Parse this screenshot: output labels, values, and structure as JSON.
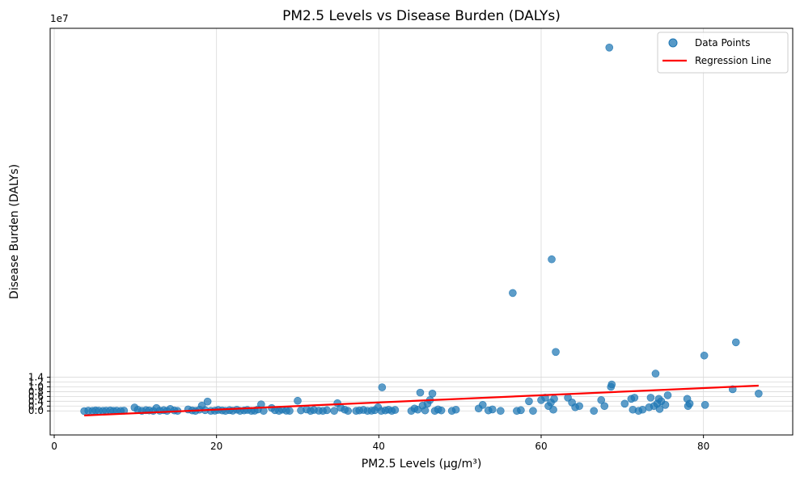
{
  "chart_data": {
    "type": "scatter",
    "title": "PM2.5 Levels vs Disease Burden (DALYs)",
    "xlabel": "PM2.5 Levels (µg/m³)",
    "ylabel": "Disease Burden (DALYs)",
    "y_offset_text": "1e7",
    "xlim": [
      -0.5,
      91
    ],
    "ylim": [
      -1.0,
      15.9
    ],
    "y_scale_multiplier": 10000000,
    "x_ticks": [
      0,
      20,
      40,
      60,
      80
    ],
    "x_tick_labels": [
      "0",
      "20",
      "40",
      "60",
      "80"
    ],
    "y_ticks": [
      0,
      0.2,
      0.4,
      0.6,
      0.8,
      1.0,
      1.2,
      1.4
    ],
    "y_tick_labels": [
      "0.0",
      "0.2",
      "0.4",
      "0.6",
      "0.8",
      "1.0",
      "1.2",
      "1.4"
    ],
    "grid": true,
    "legend_position": "top-right",
    "colors": {
      "points": "#1f77b4",
      "regression": "#ff0000",
      "grid": "#d9d9d9"
    },
    "series": [
      {
        "name": "Data Points",
        "kind": "scatter",
        "points": [
          [
            3.7,
            -0.01
          ],
          [
            4.2,
            0.01
          ],
          [
            4.7,
            0.0
          ],
          [
            5.1,
            0.02
          ],
          [
            5.5,
            0.01
          ],
          [
            6.0,
            0.0
          ],
          [
            6.4,
            0.01
          ],
          [
            6.9,
            0.02
          ],
          [
            7.3,
            0.0
          ],
          [
            7.7,
            0.01
          ],
          [
            8.2,
            0.0
          ],
          [
            8.6,
            0.01
          ],
          [
            9.9,
            0.14
          ],
          [
            10.3,
            0.05
          ],
          [
            10.8,
            0.0
          ],
          [
            11.3,
            0.03
          ],
          [
            11.7,
            0.02
          ],
          [
            12.2,
            0.0
          ],
          [
            12.6,
            0.12
          ],
          [
            13.0,
            0.01
          ],
          [
            13.5,
            0.03
          ],
          [
            13.9,
            0.0
          ],
          [
            14.3,
            0.08
          ],
          [
            14.8,
            0.02
          ],
          [
            15.2,
            0.0
          ],
          [
            16.5,
            0.06
          ],
          [
            17.0,
            0.02
          ],
          [
            17.4,
            0.0
          ],
          [
            17.9,
            0.05
          ],
          [
            18.2,
            0.22
          ],
          [
            18.6,
            0.03
          ],
          [
            18.9,
            0.39
          ],
          [
            19.3,
            0.0
          ],
          [
            19.8,
            0.01
          ],
          [
            20.2,
            0.04
          ],
          [
            20.7,
            0.02
          ],
          [
            21.1,
            0.0
          ],
          [
            21.6,
            0.03
          ],
          [
            22.0,
            0.01
          ],
          [
            22.5,
            0.05
          ],
          [
            22.9,
            0.0
          ],
          [
            23.4,
            0.02
          ],
          [
            23.8,
            0.04
          ],
          [
            24.3,
            0.0
          ],
          [
            24.7,
            0.01
          ],
          [
            25.1,
            0.06
          ],
          [
            25.5,
            0.27
          ],
          [
            25.8,
            0.0
          ],
          [
            26.8,
            0.12
          ],
          [
            27.2,
            0.03
          ],
          [
            27.7,
            0.0
          ],
          [
            28.1,
            0.05
          ],
          [
            28.6,
            0.01
          ],
          [
            29.0,
            0.0
          ],
          [
            30.0,
            0.42
          ],
          [
            30.4,
            0.02
          ],
          [
            31.1,
            0.06
          ],
          [
            31.6,
            0.0
          ],
          [
            32.0,
            0.04
          ],
          [
            32.6,
            0.01
          ],
          [
            33.1,
            0.0
          ],
          [
            33.6,
            0.03
          ],
          [
            34.5,
            0.0
          ],
          [
            34.9,
            0.32
          ],
          [
            35.3,
            0.13
          ],
          [
            35.8,
            0.05
          ],
          [
            36.2,
            0.0
          ],
          [
            37.2,
            0.0
          ],
          [
            37.6,
            0.02
          ],
          [
            38.1,
            0.04
          ],
          [
            38.6,
            0.0
          ],
          [
            39.1,
            0.01
          ],
          [
            39.5,
            0.03
          ],
          [
            39.9,
            0.15
          ],
          [
            40.3,
            0.0
          ],
          [
            40.4,
            0.98
          ],
          [
            40.8,
            0.02
          ],
          [
            41.2,
            0.05
          ],
          [
            41.6,
            0.0
          ],
          [
            42.0,
            0.04
          ],
          [
            44.0,
            0.0
          ],
          [
            44.4,
            0.1
          ],
          [
            44.8,
            0.05
          ],
          [
            45.1,
            0.76
          ],
          [
            45.4,
            0.22
          ],
          [
            45.7,
            0.02
          ],
          [
            46.0,
            0.3
          ],
          [
            46.3,
            0.45
          ],
          [
            46.6,
            0.72
          ],
          [
            46.9,
            0.0
          ],
          [
            47.3,
            0.06
          ],
          [
            47.7,
            0.02
          ],
          [
            49.0,
            0.0
          ],
          [
            49.5,
            0.05
          ],
          [
            52.3,
            0.1
          ],
          [
            52.8,
            0.25
          ],
          [
            53.5,
            0.02
          ],
          [
            54.0,
            0.06
          ],
          [
            55.0,
            0.0
          ],
          [
            56.5,
            4.9
          ],
          [
            57.0,
            0.0
          ],
          [
            57.5,
            0.03
          ],
          [
            58.5,
            0.4
          ],
          [
            59.0,
            0.0
          ],
          [
            60.0,
            0.45
          ],
          [
            60.5,
            0.55
          ],
          [
            60.9,
            0.2
          ],
          [
            61.2,
            0.35
          ],
          [
            61.3,
            6.3
          ],
          [
            61.5,
            0.05
          ],
          [
            61.6,
            0.5
          ],
          [
            61.8,
            2.45
          ],
          [
            63.3,
            0.55
          ],
          [
            63.8,
            0.35
          ],
          [
            64.2,
            0.15
          ],
          [
            64.7,
            0.2
          ],
          [
            66.5,
            0.0
          ],
          [
            67.4,
            0.45
          ],
          [
            67.8,
            0.2
          ],
          [
            68.4,
            15.1
          ],
          [
            68.6,
            1.0
          ],
          [
            68.7,
            1.1
          ],
          [
            70.3,
            0.3
          ],
          [
            71.1,
            0.5
          ],
          [
            71.3,
            0.05
          ],
          [
            71.5,
            0.55
          ],
          [
            72.0,
            0.0
          ],
          [
            72.5,
            0.05
          ],
          [
            73.3,
            0.15
          ],
          [
            73.5,
            0.55
          ],
          [
            73.9,
            0.2
          ],
          [
            74.1,
            1.55
          ],
          [
            74.3,
            0.3
          ],
          [
            74.5,
            0.5
          ],
          [
            74.6,
            0.08
          ],
          [
            74.8,
            0.4
          ],
          [
            75.3,
            0.25
          ],
          [
            75.6,
            0.65
          ],
          [
            78.0,
            0.5
          ],
          [
            78.3,
            0.3
          ],
          [
            78.1,
            0.2
          ],
          [
            80.1,
            2.3
          ],
          [
            80.2,
            0.25
          ],
          [
            83.6,
            0.9
          ],
          [
            84.0,
            2.85
          ],
          [
            86.8,
            0.72
          ]
        ]
      },
      {
        "name": "Regression Line",
        "kind": "line",
        "points": [
          [
            3.7,
            -0.19
          ],
          [
            86.8,
            1.05
          ]
        ]
      }
    ]
  }
}
